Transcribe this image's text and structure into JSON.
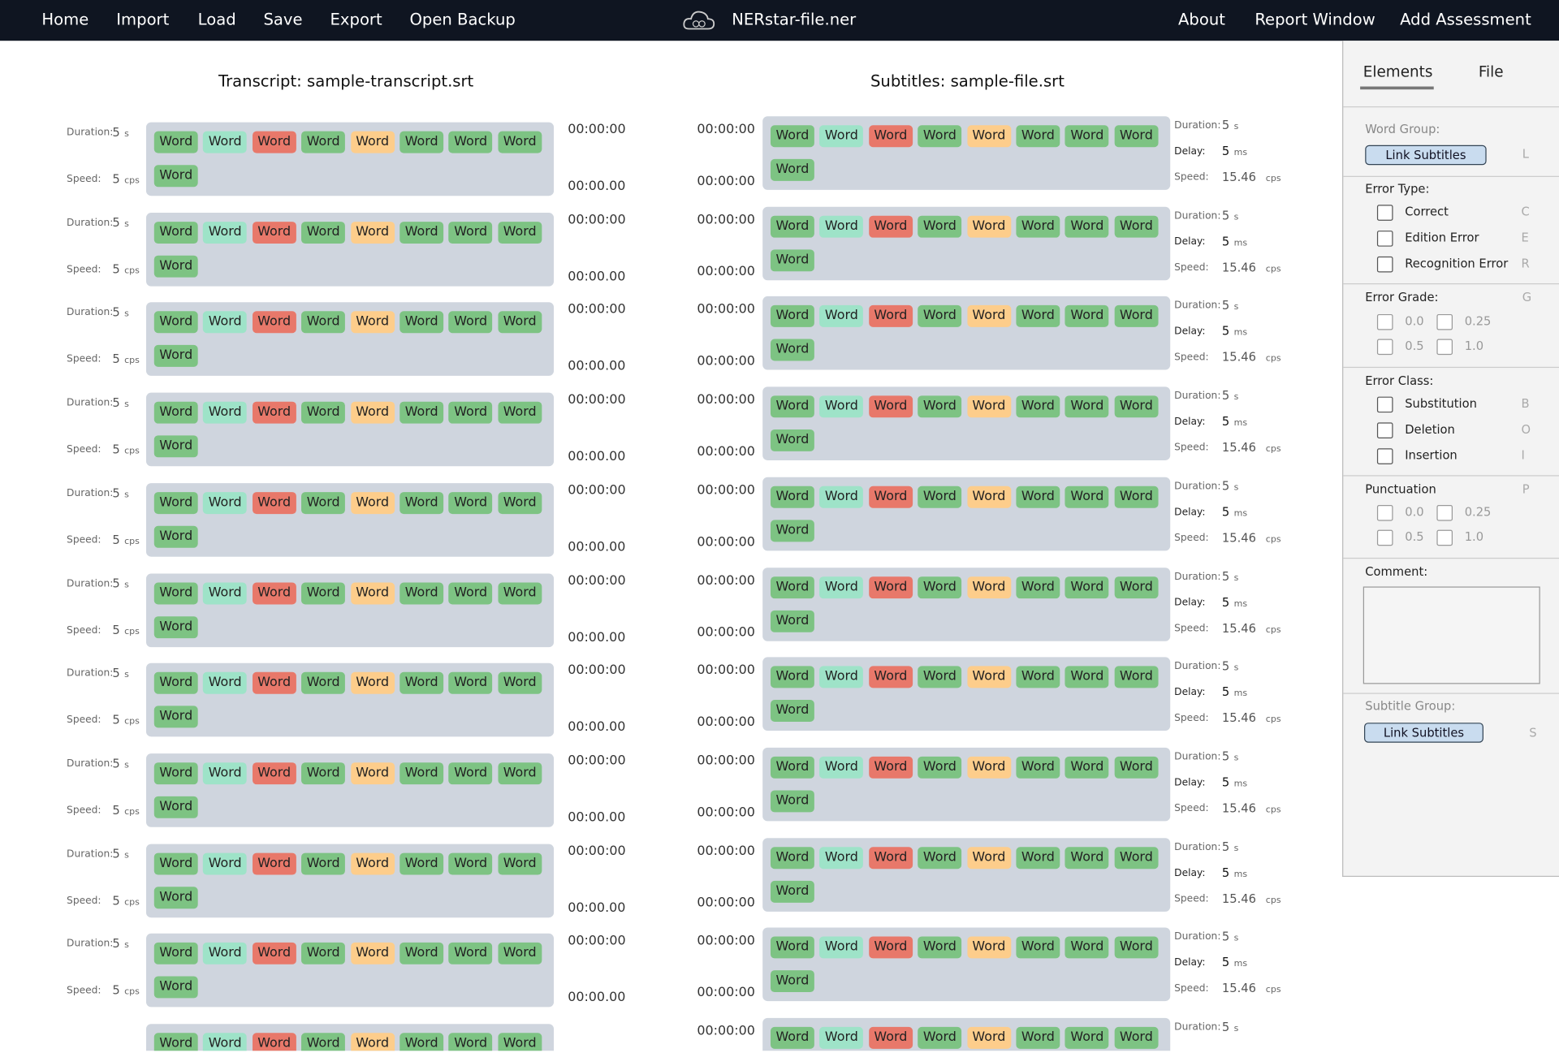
{
  "nav": {
    "left": [
      "Home",
      "Import",
      "Load",
      "Save",
      "Export",
      "Open Backup"
    ],
    "title": "NERstar-file.ner",
    "right": [
      "About",
      "Report Window",
      "Add Assessment"
    ]
  },
  "labels": {
    "duration": "Duration:",
    "speed": "Speed:",
    "delay": "Delay:",
    "s": "s",
    "cps": "cps",
    "ms": "ms"
  },
  "transcript": {
    "title": "Transcript: sample-transcript.srt",
    "blocks": [
      {
        "duration": 5,
        "speed": 5,
        "start": "00:00:00",
        "end": "00:00.00",
        "words": [
          "Word",
          "Word",
          "Word",
          "Word",
          "Word",
          "Word",
          "Word",
          "Word",
          "Word"
        ],
        "colors": [
          "#7dc383",
          "#9ee3c8",
          "#e8786a",
          "#7dc383",
          "#fdcd8b",
          "#7dc383",
          "#7dc383",
          "#7dc383",
          "#7dc383"
        ]
      },
      {
        "duration": 5,
        "speed": 5,
        "start": "00:00:00",
        "end": "00:00.00",
        "words": [
          "Word",
          "Word",
          "Word",
          "Word",
          "Word",
          "Word",
          "Word",
          "Word",
          "Word"
        ],
        "colors": [
          "#7dc383",
          "#9ee3c8",
          "#e8786a",
          "#7dc383",
          "#fdcd8b",
          "#7dc383",
          "#7dc383",
          "#7dc383",
          "#7dc383"
        ]
      },
      {
        "duration": 5,
        "speed": 5,
        "start": "00:00:00",
        "end": "00:00.00",
        "words": [
          "Word",
          "Word",
          "Word",
          "Word",
          "Word",
          "Word",
          "Word",
          "Word",
          "Word"
        ],
        "colors": [
          "#7dc383",
          "#9ee3c8",
          "#e8786a",
          "#7dc383",
          "#fdcd8b",
          "#7dc383",
          "#7dc383",
          "#7dc383",
          "#7dc383"
        ]
      },
      {
        "duration": 5,
        "speed": 5,
        "start": "00:00:00",
        "end": "00:00.00",
        "words": [
          "Word",
          "Word",
          "Word",
          "Word",
          "Word",
          "Word",
          "Word",
          "Word",
          "Word"
        ],
        "colors": [
          "#7dc383",
          "#9ee3c8",
          "#e8786a",
          "#7dc383",
          "#fdcd8b",
          "#7dc383",
          "#7dc383",
          "#7dc383",
          "#7dc383"
        ]
      },
      {
        "duration": 5,
        "speed": 5,
        "start": "00:00:00",
        "end": "00:00.00",
        "words": [
          "Word",
          "Word",
          "Word",
          "Word",
          "Word",
          "Word",
          "Word",
          "Word",
          "Word"
        ],
        "colors": [
          "#7dc383",
          "#9ee3c8",
          "#e8786a",
          "#7dc383",
          "#fdcd8b",
          "#7dc383",
          "#7dc383",
          "#7dc383",
          "#7dc383"
        ]
      },
      {
        "duration": 5,
        "speed": 5,
        "start": "00:00:00",
        "end": "00:00.00",
        "words": [
          "Word",
          "Word",
          "Word",
          "Word",
          "Word",
          "Word",
          "Word",
          "Word",
          "Word"
        ],
        "colors": [
          "#7dc383",
          "#9ee3c8",
          "#e8786a",
          "#7dc383",
          "#fdcd8b",
          "#7dc383",
          "#7dc383",
          "#7dc383",
          "#7dc383"
        ]
      },
      {
        "duration": 5,
        "speed": 5,
        "start": "00:00:00",
        "end": "00:00.00",
        "words": [
          "Word",
          "Word",
          "Word",
          "Word",
          "Word",
          "Word",
          "Word",
          "Word",
          "Word"
        ],
        "colors": [
          "#7dc383",
          "#9ee3c8",
          "#e8786a",
          "#7dc383",
          "#fdcd8b",
          "#7dc383",
          "#7dc383",
          "#7dc383",
          "#7dc383"
        ]
      },
      {
        "duration": 5,
        "speed": 5,
        "start": "00:00:00",
        "end": "00:00.00",
        "words": [
          "Word",
          "Word",
          "Word",
          "Word",
          "Word",
          "Word",
          "Word",
          "Word",
          "Word"
        ],
        "colors": [
          "#7dc383",
          "#9ee3c8",
          "#e8786a",
          "#7dc383",
          "#fdcd8b",
          "#7dc383",
          "#7dc383",
          "#7dc383",
          "#7dc383"
        ]
      },
      {
        "duration": 5,
        "speed": 5,
        "start": "00:00:00",
        "end": "00:00.00",
        "words": [
          "Word",
          "Word",
          "Word",
          "Word",
          "Word",
          "Word",
          "Word",
          "Word",
          "Word"
        ],
        "colors": [
          "#7dc383",
          "#9ee3c8",
          "#e8786a",
          "#7dc383",
          "#fdcd8b",
          "#7dc383",
          "#7dc383",
          "#7dc383",
          "#7dc383"
        ]
      },
      {
        "duration": 5,
        "speed": 5,
        "start": "00:00:00",
        "end": "00:00.00",
        "words": [
          "Word",
          "Word",
          "Word",
          "Word",
          "Word",
          "Word",
          "Word",
          "Word",
          "Word"
        ],
        "colors": [
          "#7dc383",
          "#9ee3c8",
          "#e8786a",
          "#7dc383",
          "#fdcd8b",
          "#7dc383",
          "#7dc383",
          "#7dc383",
          "#7dc383"
        ]
      },
      {
        "words": [
          "Word",
          "Word",
          "Word",
          "Word",
          "Word",
          "Word",
          "Word",
          "Word"
        ],
        "colors": [
          "#7dc383",
          "#9ee3c8",
          "#e8786a",
          "#7dc383",
          "#fdcd8b",
          "#7dc383",
          "#7dc383",
          "#7dc383"
        ]
      }
    ]
  },
  "subtitles": {
    "title": "Subtitles: sample-file.srt",
    "blocks": [
      {
        "duration": 5,
        "delay": 5,
        "speed": 15.46,
        "start": "00:00:00",
        "end": "00:00:00",
        "words": [
          "Word",
          "Word",
          "Word",
          "Word",
          "Word",
          "Word",
          "Word",
          "Word",
          "Word"
        ],
        "colors": [
          "#7dc383",
          "#9ee3c8",
          "#e8786a",
          "#7dc383",
          "#fdcd8b",
          "#7dc383",
          "#7dc383",
          "#7dc383",
          "#7dc383"
        ]
      },
      {
        "duration": 5,
        "delay": 5,
        "speed": 15.46,
        "start": "00:00:00",
        "end": "00:00:00",
        "words": [
          "Word",
          "Word",
          "Word",
          "Word",
          "Word",
          "Word",
          "Word",
          "Word",
          "Word"
        ],
        "colors": [
          "#7dc383",
          "#9ee3c8",
          "#e8786a",
          "#7dc383",
          "#fdcd8b",
          "#7dc383",
          "#7dc383",
          "#7dc383",
          "#7dc383"
        ]
      },
      {
        "duration": 5,
        "delay": 5,
        "speed": 15.46,
        "start": "00:00:00",
        "end": "00:00:00",
        "words": [
          "Word",
          "Word",
          "Word",
          "Word",
          "Word",
          "Word",
          "Word",
          "Word",
          "Word"
        ],
        "colors": [
          "#7dc383",
          "#9ee3c8",
          "#e8786a",
          "#7dc383",
          "#fdcd8b",
          "#7dc383",
          "#7dc383",
          "#7dc383",
          "#7dc383"
        ]
      },
      {
        "duration": 5,
        "delay": 5,
        "speed": 15.46,
        "start": "00:00:00",
        "end": "00:00:00",
        "words": [
          "Word",
          "Word",
          "Word",
          "Word",
          "Word",
          "Word",
          "Word",
          "Word",
          "Word"
        ],
        "colors": [
          "#7dc383",
          "#9ee3c8",
          "#e8786a",
          "#7dc383",
          "#fdcd8b",
          "#7dc383",
          "#7dc383",
          "#7dc383",
          "#7dc383"
        ]
      },
      {
        "duration": 5,
        "delay": 5,
        "speed": 15.46,
        "start": "00:00:00",
        "end": "00:00:00",
        "words": [
          "Word",
          "Word",
          "Word",
          "Word",
          "Word",
          "Word",
          "Word",
          "Word",
          "Word"
        ],
        "colors": [
          "#7dc383",
          "#9ee3c8",
          "#e8786a",
          "#7dc383",
          "#fdcd8b",
          "#7dc383",
          "#7dc383",
          "#7dc383",
          "#7dc383"
        ]
      },
      {
        "duration": 5,
        "delay": 5,
        "speed": 15.46,
        "start": "00:00:00",
        "end": "00:00:00",
        "words": [
          "Word",
          "Word",
          "Word",
          "Word",
          "Word",
          "Word",
          "Word",
          "Word",
          "Word"
        ],
        "colors": [
          "#7dc383",
          "#9ee3c8",
          "#e8786a",
          "#7dc383",
          "#fdcd8b",
          "#7dc383",
          "#7dc383",
          "#7dc383",
          "#7dc383"
        ]
      },
      {
        "duration": 5,
        "delay": 5,
        "speed": 15.46,
        "start": "00:00:00",
        "end": "00:00:00",
        "words": [
          "Word",
          "Word",
          "Word",
          "Word",
          "Word",
          "Word",
          "Word",
          "Word",
          "Word"
        ],
        "colors": [
          "#7dc383",
          "#9ee3c8",
          "#e8786a",
          "#7dc383",
          "#fdcd8b",
          "#7dc383",
          "#7dc383",
          "#7dc383",
          "#7dc383"
        ]
      },
      {
        "duration": 5,
        "delay": 5,
        "speed": 15.46,
        "start": "00:00:00",
        "end": "00:00:00",
        "words": [
          "Word",
          "Word",
          "Word",
          "Word",
          "Word",
          "Word",
          "Word",
          "Word",
          "Word"
        ],
        "colors": [
          "#7dc383",
          "#9ee3c8",
          "#e8786a",
          "#7dc383",
          "#fdcd8b",
          "#7dc383",
          "#7dc383",
          "#7dc383",
          "#7dc383"
        ]
      },
      {
        "duration": 5,
        "delay": 5,
        "speed": 15.46,
        "start": "00:00:00",
        "end": "00:00:00",
        "words": [
          "Word",
          "Word",
          "Word",
          "Word",
          "Word",
          "Word",
          "Word",
          "Word",
          "Word"
        ],
        "colors": [
          "#7dc383",
          "#9ee3c8",
          "#e8786a",
          "#7dc383",
          "#fdcd8b",
          "#7dc383",
          "#7dc383",
          "#7dc383",
          "#7dc383"
        ]
      },
      {
        "duration": 5,
        "delay": 5,
        "speed": 15.46,
        "start": "00:00:00",
        "end": "00:00:00",
        "words": [
          "Word",
          "Word",
          "Word",
          "Word",
          "Word",
          "Word",
          "Word",
          "Word",
          "Word"
        ],
        "colors": [
          "#7dc383",
          "#9ee3c8",
          "#e8786a",
          "#7dc383",
          "#fdcd8b",
          "#7dc383",
          "#7dc383",
          "#7dc383",
          "#7dc383"
        ]
      },
      {
        "duration": 5,
        "start": "00:00:00",
        "words": [
          "Word",
          "Word",
          "Word",
          "Word",
          "Word",
          "Word",
          "Word",
          "Word"
        ],
        "colors": [
          "#7dc383",
          "#9ee3c8",
          "#e8786a",
          "#7dc383",
          "#fdcd8b",
          "#7dc383",
          "#7dc383",
          "#7dc383"
        ]
      }
    ]
  },
  "sidebar": {
    "tabs": [
      "Elements",
      "File"
    ],
    "word_group": {
      "label": "Word Group:",
      "button": "Link Subtitles",
      "key": "L"
    },
    "error_type": {
      "label": "Error Type:",
      "options": [
        {
          "text": "Correct",
          "key": "C"
        },
        {
          "text": "Edition Error",
          "key": "E"
        },
        {
          "text": "Recognition Error",
          "key": "R"
        }
      ]
    },
    "error_grade": {
      "label": "Error Grade:",
      "key": "G",
      "options": [
        "0.0",
        "0.25",
        "0.5",
        "1.0"
      ]
    },
    "error_class": {
      "label": "Error Class:",
      "options": [
        {
          "text": "Substitution",
          "key": "B"
        },
        {
          "text": "Deletion",
          "key": "O"
        },
        {
          "text": "Insertion",
          "key": "I"
        }
      ]
    },
    "punctuation": {
      "label": "Punctuation",
      "key": "P",
      "options": [
        "0.0",
        "0.25",
        "0.5",
        "1.0"
      ]
    },
    "comment": {
      "label": "Comment:"
    },
    "subtitle_group": {
      "label": "Subtitle Group:",
      "button": "Link Subtitles",
      "key": "S"
    }
  }
}
